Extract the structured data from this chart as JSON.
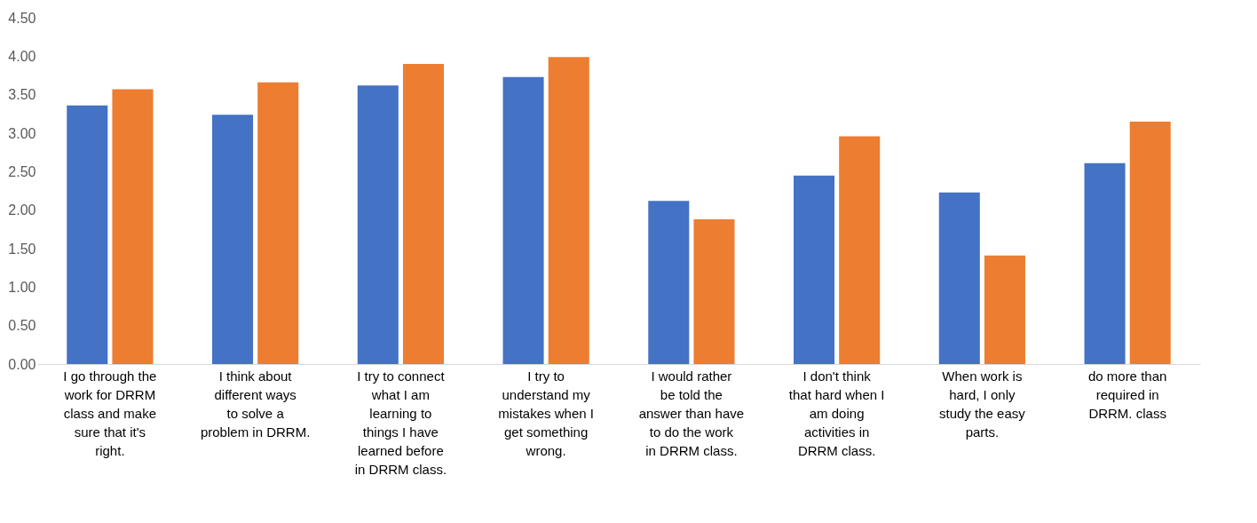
{
  "chart_data": {
    "type": "bar",
    "categories": [
      "I go through the work for DRRM class and make sure that it's right.",
      "I think about different ways to solve a problem in DRRM.",
      "I try to connect what I am learning to things I have learned before in DRRM class.",
      "I try to understand my mistakes when I get something wrong.",
      "I would rather be told the answer than have to do the work in DRRM class.",
      "I don't think that hard when I am doing activities in DRRM class.",
      "When work is hard, I only study the easy parts.",
      "do more than required in DRRM. class"
    ],
    "series": [
      {
        "color": "#4472c4",
        "values": [
          3.36,
          3.24,
          3.62,
          3.73,
          2.12,
          2.45,
          2.23,
          2.61
        ]
      },
      {
        "color": "#ed7d31",
        "values": [
          3.57,
          3.66,
          3.9,
          3.99,
          1.88,
          2.96,
          1.41,
          3.15
        ]
      }
    ],
    "ylim": [
      0,
      4.5
    ],
    "yticks": [
      {
        "value": 0,
        "label": "0.00"
      },
      {
        "value": 0.5,
        "label": "0.50"
      },
      {
        "value": 1,
        "label": "1.00"
      },
      {
        "value": 1.5,
        "label": "1.50"
      },
      {
        "value": 2,
        "label": "2.00"
      },
      {
        "value": 2.5,
        "label": "2.50"
      },
      {
        "value": 3,
        "label": "3.00"
      },
      {
        "value": 3.5,
        "label": "3.50"
      },
      {
        "value": 4,
        "label": "4.00"
      },
      {
        "value": 4.5,
        "label": "4.50"
      }
    ],
    "grid": false,
    "legend": false
  }
}
